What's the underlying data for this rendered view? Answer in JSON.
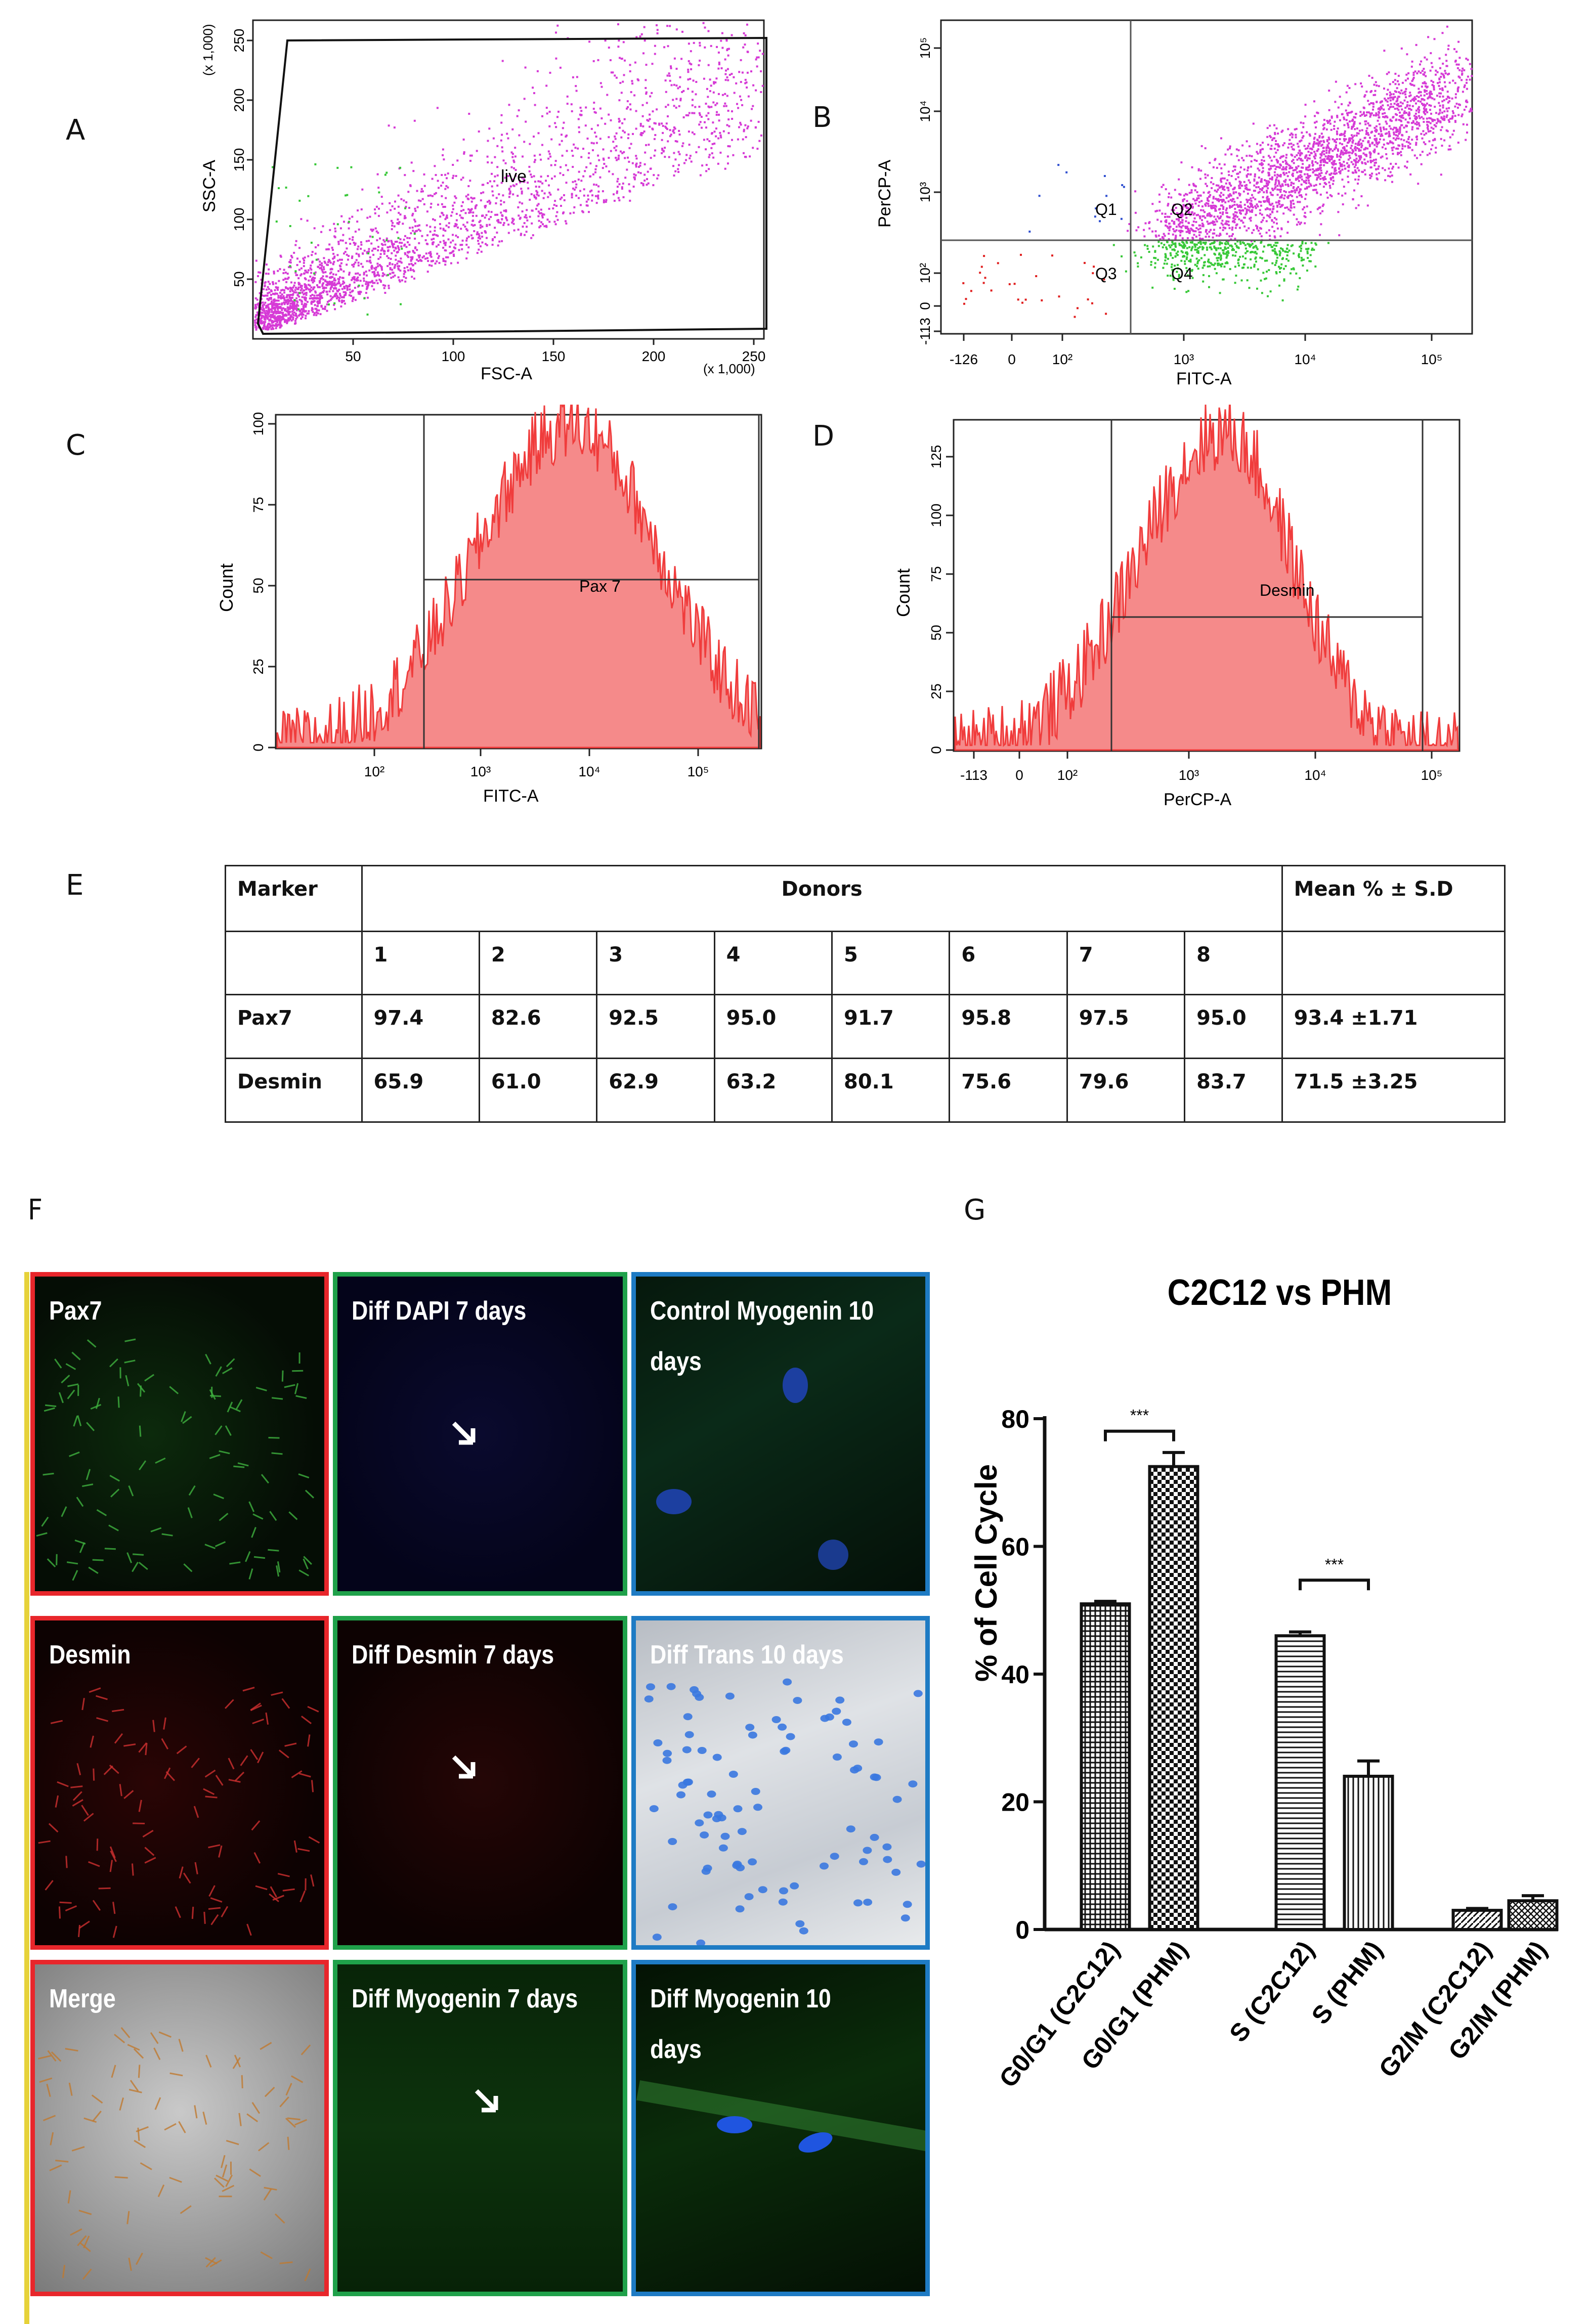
{
  "panel_labels": {
    "A": "A",
    "B": "B",
    "C": "C",
    "D": "D",
    "E": "E",
    "F": "F",
    "G": "G"
  },
  "colors": {
    "magenta": "#d63ad6",
    "green": "#37c837",
    "histogram_red": "#f03c3c",
    "histogram_fill": "#f58a8a"
  },
  "panel_a": {
    "title_scale_y": "(x 1,000)",
    "title_scale_x": "(x 1,000)",
    "ylabel": "SSC-A",
    "xlabel": "FSC-A",
    "gate": "live",
    "xticks": [
      "50",
      "100",
      "150",
      "200",
      "250"
    ],
    "yticks": [
      "50",
      "100",
      "150",
      "200",
      "250"
    ]
  },
  "panel_b": {
    "ylabel": "PerCP-A",
    "xlabel": "FITC-A",
    "quadrants": [
      "Q1",
      "Q2",
      "Q3",
      "Q4"
    ],
    "xticks": [
      "-126",
      "0",
      "10²",
      "10³",
      "10⁴",
      "10⁵"
    ],
    "yticks": [
      "-113",
      "0",
      "10²",
      "10³",
      "10⁴",
      "10⁵"
    ]
  },
  "panel_c": {
    "ylabel": "Count",
    "xlabel": "FITC-A",
    "gate": "Pax 7",
    "yticks": [
      "0",
      "25",
      "50",
      "75",
      "100"
    ],
    "xticks": [
      "10²",
      "10³",
      "10⁴",
      "10⁵"
    ]
  },
  "panel_d": {
    "ylabel": "Count",
    "xlabel": "PerCP-A",
    "gate": "Desmin",
    "yticks": [
      "0",
      "25",
      "50",
      "75",
      "100",
      "125"
    ],
    "xticks": [
      "-113",
      "0",
      "10²",
      "10³",
      "10⁴",
      "10⁵"
    ]
  },
  "table": {
    "header_marker": "Marker",
    "header_donors": "Donors",
    "header_mean": "Mean % ± S.D",
    "donor_ids": [
      "1",
      "2",
      "3",
      "4",
      "5",
      "6",
      "7",
      "8"
    ],
    "rows": [
      {
        "marker": "Pax7",
        "values": [
          "97.4",
          "82.6",
          "92.5",
          "95.0",
          "91.7",
          "95.8",
          "97.5",
          "95.0"
        ],
        "mean": "93.4 ±1.71"
      },
      {
        "marker": "Desmin",
        "values": [
          "65.9",
          "61.0",
          "62.9",
          "63.2",
          "80.1",
          "75.6",
          "79.6",
          "83.7"
        ],
        "mean": "71.5 ±3.25"
      }
    ]
  },
  "micrographs": [
    {
      "label": "Pax7",
      "frame": "red",
      "tone": "green"
    },
    {
      "label": "Diff DAPI 7 days",
      "frame": "green",
      "tone": "blue"
    },
    {
      "label": "Control Myogenin 10 days",
      "frame": "blue",
      "tone": "cyan"
    },
    {
      "label": "Desmin",
      "frame": "red",
      "tone": "red"
    },
    {
      "label": "Diff Desmin 7 days",
      "frame": "green",
      "tone": "red"
    },
    {
      "label": "Diff Trans 10 days",
      "frame": "blue",
      "tone": "trans"
    },
    {
      "label": "Merge",
      "frame": "red",
      "tone": "merge"
    },
    {
      "label": "Diff Myogenin 7 days",
      "frame": "green",
      "tone": "green"
    },
    {
      "label": "Diff Myogenin 10 days",
      "frame": "blue",
      "tone": "green2"
    }
  ],
  "chart_data": {
    "type": "bar",
    "title": "C2C12 vs PHM",
    "ylabel": "% of Cell Cycle",
    "xlabel": "",
    "ylim": [
      0,
      80
    ],
    "yticks": [
      0,
      20,
      40,
      60,
      80
    ],
    "categories": [
      "G0/G1 (C2C12)",
      "G0/G1 (PHM)",
      "S (C2C12)",
      "S (PHM)",
      "G2/M (C2C12)",
      "G2/M (PHM)"
    ],
    "values": [
      51,
      72.5,
      46,
      24,
      3,
      4.5
    ],
    "errors": [
      0.4,
      2.2,
      0.6,
      2.4,
      0.3,
      0.8
    ],
    "significance": [
      {
        "between": [
          0,
          1
        ],
        "label": "***"
      },
      {
        "between": [
          2,
          3
        ],
        "label": "***"
      }
    ]
  }
}
